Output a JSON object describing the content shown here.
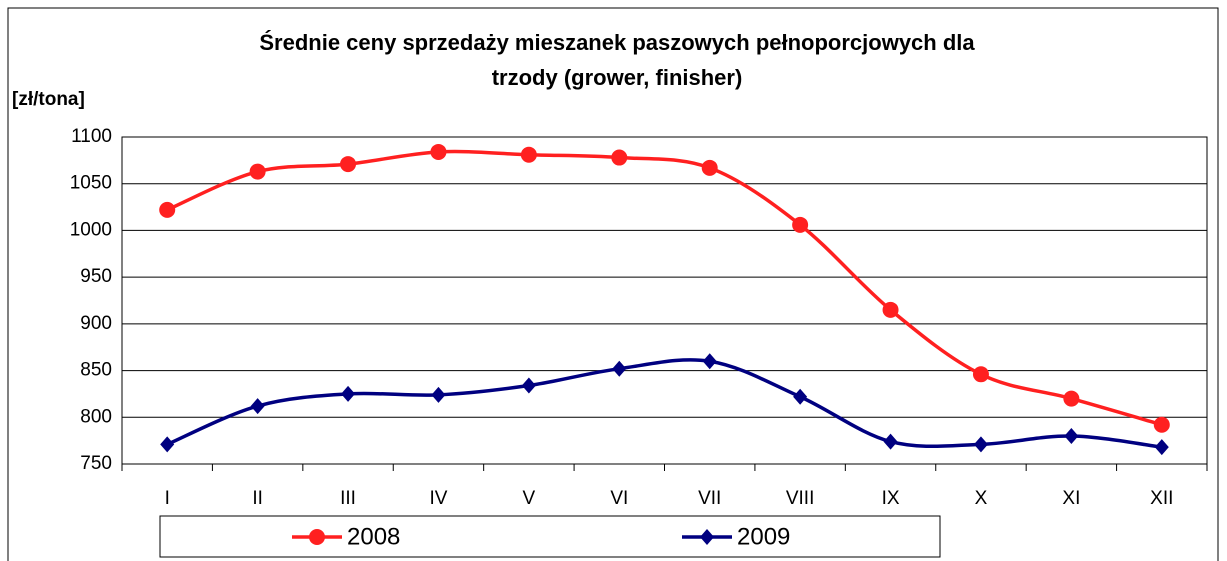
{
  "chart_data": {
    "type": "line",
    "title": "Średnie ceny sprzedaży mieszanek paszowych pełnoporcjowych dla trzody (grower, finisher)",
    "y_label": "[zł/tona]",
    "categories": [
      "I",
      "II",
      "III",
      "IV",
      "V",
      "VI",
      "VII",
      "VIII",
      "IX",
      "X",
      "XI",
      "XII"
    ],
    "series": [
      {
        "name": "2008",
        "color": "#ff2020",
        "marker": "circle",
        "values": [
          1022,
          1063,
          1071,
          1084,
          1081,
          1078,
          1067,
          1006,
          915,
          846,
          820,
          792
        ]
      },
      {
        "name": "2009",
        "color": "#000080",
        "marker": "diamond",
        "values": [
          771,
          812,
          825,
          824,
          834,
          852,
          860,
          822,
          774,
          771,
          780,
          768
        ]
      }
    ],
    "ylim": [
      750,
      1100
    ],
    "yticks": [
      750,
      800,
      850,
      900,
      950,
      1000,
      1050,
      1100
    ],
    "grid": true,
    "smooth": true,
    "legend": "bottom"
  }
}
